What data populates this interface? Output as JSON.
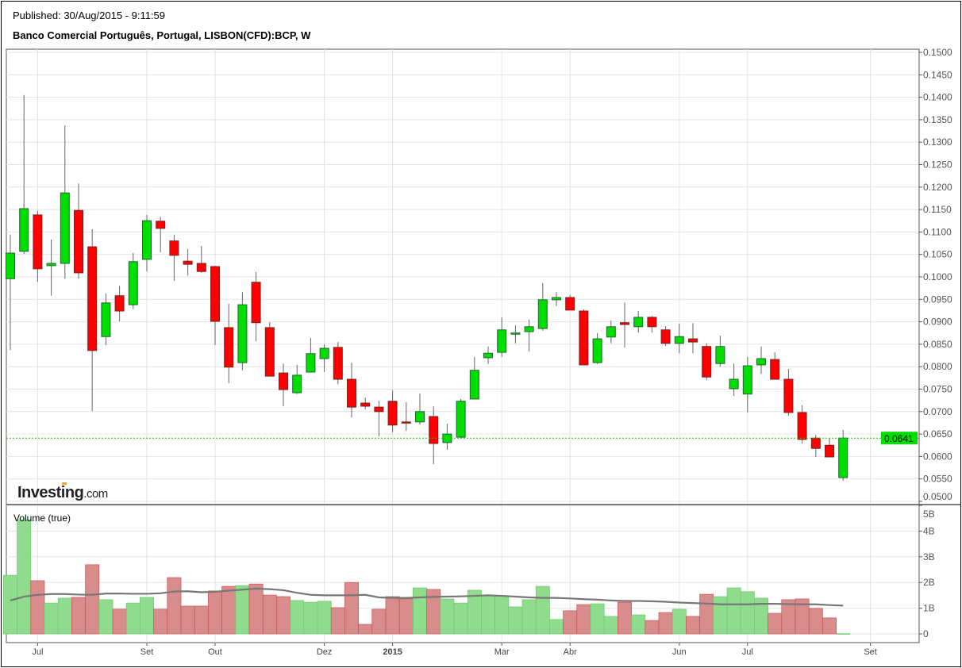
{
  "header": {
    "published": "Published: 30/Aug/2015 - 9:11:59",
    "title": "Banco Comercial Português, Portugal, LISBON(CFD):BCP, W"
  },
  "branding": {
    "logo_main": "Investing",
    "logo_suffix": ".com"
  },
  "colors": {
    "up": "#00dd00",
    "down": "#ff0000",
    "vol_up": "#8fdc8f",
    "vol_down": "#d98c8c",
    "ma": "#777777",
    "last": "#00dd00"
  },
  "chart_data": {
    "type": "candlestick",
    "title": "Banco Comercial Português, Portugal, LISBON(CFD):BCP, W",
    "price_axis": {
      "ylim": [
        0.05,
        0.15
      ],
      "ticks": [
        "0.0500",
        "0.0550",
        "0.0600",
        "0.0650",
        "0.0700",
        "0.0750",
        "0.0800",
        "0.0850",
        "0.0900",
        "0.0950",
        "0.1000",
        "0.1050",
        "0.1100",
        "0.1150",
        "0.1200",
        "0.1250",
        "0.1300",
        "0.1350",
        "0.1400",
        "0.1450",
        "0.1500"
      ]
    },
    "last_price": {
      "value": 0.0641,
      "label": "0.0641"
    },
    "volume_panel": {
      "label": "Volume (true)",
      "ylim": [
        0,
        5
      ],
      "ticks": [
        "0",
        "1B",
        "2B",
        "3B",
        "4B",
        "5B"
      ]
    },
    "x_labels": [
      {
        "index": 2,
        "label": "Jul",
        "bold": false
      },
      {
        "index": 10,
        "label": "Set",
        "bold": false
      },
      {
        "index": 15,
        "label": "Out",
        "bold": false
      },
      {
        "index": 23,
        "label": "Dez",
        "bold": false
      },
      {
        "index": 28,
        "label": "2015",
        "bold": true
      },
      {
        "index": 36,
        "label": "Mar",
        "bold": false
      },
      {
        "index": 41,
        "label": "Abr",
        "bold": false
      },
      {
        "index": 49,
        "label": "Jun",
        "bold": false
      },
      {
        "index": 54,
        "label": "Jul",
        "bold": false
      },
      {
        "index": 63,
        "label": "Set",
        "bold": false
      }
    ],
    "ohlc": [
      [
        0.0996,
        0.1094,
        0.0837,
        0.1053
      ],
      [
        0.1057,
        0.1405,
        0.1051,
        0.1152
      ],
      [
        0.1138,
        0.1147,
        0.0989,
        0.1018
      ],
      [
        0.1025,
        0.1083,
        0.0958,
        0.103
      ],
      [
        0.103,
        0.1337,
        0.0996,
        0.1187
      ],
      [
        0.1148,
        0.1208,
        0.0996,
        0.1009
      ],
      [
        0.1067,
        0.1106,
        0.0701,
        0.0836
      ],
      [
        0.0867,
        0.0963,
        0.0848,
        0.0942
      ],
      [
        0.0958,
        0.098,
        0.0901,
        0.0924
      ],
      [
        0.0938,
        0.1053,
        0.0928,
        0.1034
      ],
      [
        0.1039,
        0.1138,
        0.1012,
        0.1125
      ],
      [
        0.1124,
        0.1134,
        0.1055,
        0.1108
      ],
      [
        0.108,
        0.1094,
        0.0991,
        0.1048
      ],
      [
        0.1035,
        0.1062,
        0.1003,
        0.1028
      ],
      [
        0.103,
        0.1069,
        0.1009,
        0.1012
      ],
      [
        0.1023,
        0.1025,
        0.0848,
        0.0901
      ],
      [
        0.0887,
        0.094,
        0.0763,
        0.0799
      ],
      [
        0.0809,
        0.0966,
        0.0792,
        0.0938
      ],
      [
        0.0988,
        0.1011,
        0.0857,
        0.0898
      ],
      [
        0.0887,
        0.0899,
        0.0779,
        0.0779
      ],
      [
        0.0786,
        0.0807,
        0.0712,
        0.0749
      ],
      [
        0.0742,
        0.0804,
        0.0739,
        0.0781
      ],
      [
        0.0788,
        0.0864,
        0.0788,
        0.0829
      ],
      [
        0.0818,
        0.085,
        0.0788,
        0.0841
      ],
      [
        0.0843,
        0.0855,
        0.0761,
        0.0772
      ],
      [
        0.0772,
        0.0809,
        0.0687,
        0.071
      ],
      [
        0.0719,
        0.0731,
        0.0705,
        0.0712
      ],
      [
        0.071,
        0.0724,
        0.0645,
        0.07
      ],
      [
        0.0723,
        0.0747,
        0.0654,
        0.067
      ],
      [
        0.0677,
        0.0721,
        0.0657,
        0.0675
      ],
      [
        0.0677,
        0.074,
        0.0671,
        0.07
      ],
      [
        0.0689,
        0.0712,
        0.0583,
        0.0629
      ],
      [
        0.0631,
        0.0673,
        0.0615,
        0.065
      ],
      [
        0.0643,
        0.0728,
        0.064,
        0.0723
      ],
      [
        0.0728,
        0.0822,
        0.0728,
        0.0792
      ],
      [
        0.082,
        0.0845,
        0.0806,
        0.083
      ],
      [
        0.0832,
        0.091,
        0.0822,
        0.0882
      ],
      [
        0.0874,
        0.0892,
        0.0852,
        0.0875
      ],
      [
        0.0878,
        0.0905,
        0.0834,
        0.0889
      ],
      [
        0.0885,
        0.0986,
        0.088,
        0.0949
      ],
      [
        0.0949,
        0.0966,
        0.0935,
        0.0954
      ],
      [
        0.0954,
        0.0959,
        0.0926,
        0.0926
      ],
      [
        0.0924,
        0.0928,
        0.0804,
        0.0804
      ],
      [
        0.0809,
        0.0875,
        0.0806,
        0.0862
      ],
      [
        0.0866,
        0.0903,
        0.0852,
        0.0889
      ],
      [
        0.0898,
        0.0943,
        0.0843,
        0.0894
      ],
      [
        0.0889,
        0.0924,
        0.0876,
        0.091
      ],
      [
        0.091,
        0.0913,
        0.0876,
        0.0889
      ],
      [
        0.0882,
        0.089,
        0.0846,
        0.0852
      ],
      [
        0.0852,
        0.0896,
        0.083,
        0.0867
      ],
      [
        0.0862,
        0.0897,
        0.083,
        0.0855
      ],
      [
        0.0845,
        0.0852,
        0.077,
        0.0777
      ],
      [
        0.0807,
        0.0869,
        0.08,
        0.0845
      ],
      [
        0.0751,
        0.0807,
        0.0735,
        0.0772
      ],
      [
        0.0739,
        0.0822,
        0.0698,
        0.0802
      ],
      [
        0.0804,
        0.0845,
        0.0784,
        0.0818
      ],
      [
        0.0816,
        0.0832,
        0.0772,
        0.0772
      ],
      [
        0.0772,
        0.0795,
        0.0691,
        0.0698
      ],
      [
        0.0698,
        0.0714,
        0.0629,
        0.0638
      ],
      [
        0.0641,
        0.0648,
        0.0599,
        0.0618
      ],
      [
        0.0625,
        0.0641,
        0.0599,
        0.0599
      ],
      [
        0.0553,
        0.0659,
        0.0546,
        0.0641
      ]
    ],
    "volume_billions": [
      2.28,
      4.44,
      2.07,
      1.2,
      1.39,
      1.42,
      2.69,
      1.33,
      0.96,
      1.2,
      1.42,
      0.96,
      2.19,
      1.08,
      1.08,
      1.67,
      1.85,
      1.88,
      1.94,
      1.51,
      1.45,
      1.3,
      1.23,
      1.27,
      1.02,
      2.0,
      0.37,
      0.96,
      1.45,
      1.36,
      1.79,
      1.73,
      1.36,
      1.2,
      1.7,
      1.48,
      1.48,
      1.05,
      1.33,
      1.85,
      0.56,
      0.9,
      1.14,
      1.17,
      0.68,
      1.23,
      0.74,
      0.52,
      0.83,
      0.96,
      0.68,
      1.54,
      1.45,
      1.79,
      1.64,
      1.39,
      0.8,
      1.33,
      1.36,
      0.99,
      0.62,
      0.01
    ],
    "volume_ma_billions": [
      1.3,
      1.45,
      1.52,
      1.55,
      1.55,
      1.53,
      1.52,
      1.57,
      1.57,
      1.56,
      1.56,
      1.58,
      1.65,
      1.66,
      1.62,
      1.64,
      1.68,
      1.72,
      1.76,
      1.74,
      1.7,
      1.6,
      1.52,
      1.5,
      1.5,
      1.5,
      1.52,
      1.42,
      1.4,
      1.4,
      1.42,
      1.44,
      1.45,
      1.46,
      1.48,
      1.5,
      1.48,
      1.45,
      1.42,
      1.4,
      1.4,
      1.38,
      1.35,
      1.33,
      1.3,
      1.28,
      1.28,
      1.27,
      1.25,
      1.22,
      1.2,
      1.18,
      1.15,
      1.15,
      1.15,
      1.17,
      1.17,
      1.16,
      1.15,
      1.15,
      1.12,
      1.1
    ]
  }
}
